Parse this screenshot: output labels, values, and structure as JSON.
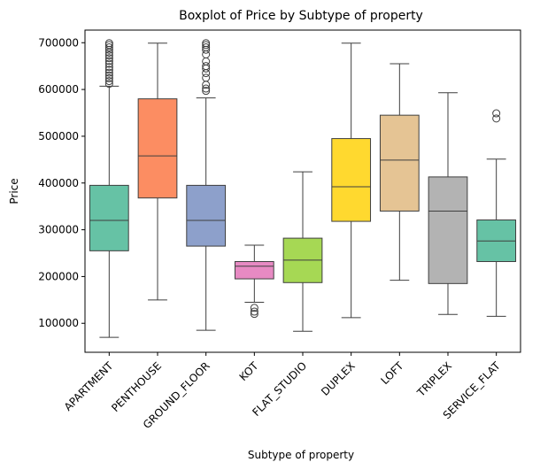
{
  "chart_data": {
    "type": "boxplot",
    "title": "Boxplot of Price by Subtype of property",
    "xlabel": "Subtype of property",
    "ylabel": "Price",
    "ylim": [
      38000,
      727000
    ],
    "yticks": [
      {
        "value": 100000,
        "label": "100000"
      },
      {
        "value": 200000,
        "label": "200000"
      },
      {
        "value": 300000,
        "label": "300000"
      },
      {
        "value": 400000,
        "label": "400000"
      },
      {
        "value": 500000,
        "label": "500000"
      },
      {
        "value": 600000,
        "label": "600000"
      },
      {
        "value": 700000,
        "label": "700000"
      }
    ],
    "grid": false,
    "legend": "none",
    "categories": [
      "APARTMENT",
      "PENTHOUSE",
      "GROUND_FLOOR",
      "KOT",
      "FLAT_STUDIO",
      "DUPLEX",
      "LOFT",
      "TRIPLEX",
      "SERVICE_FLAT"
    ],
    "boxes": [
      {
        "category": "APARTMENT",
        "whisker_low": 70000,
        "q1": 255000,
        "median": 320000,
        "q3": 395000,
        "whisker_high": 607000,
        "color": "#66c2a5",
        "outliers": [
          612000,
          618000,
          624000,
          630000,
          636000,
          642000,
          648000,
          655000,
          661000,
          667000,
          673000,
          679000,
          685000,
          690000,
          695000,
          699000
        ]
      },
      {
        "category": "PENTHOUSE",
        "whisker_low": 150000,
        "q1": 368000,
        "median": 458000,
        "q3": 580000,
        "whisker_high": 699000,
        "color": "#fc8d62",
        "outliers": []
      },
      {
        "category": "GROUND_FLOOR",
        "whisker_low": 85000,
        "q1": 265000,
        "median": 320000,
        "q3": 395000,
        "whisker_high": 582000,
        "color": "#8da0cb",
        "outliers": [
          597000,
          602000,
          610000,
          625000,
          635000,
          645000,
          650000,
          660000,
          675000,
          685000,
          690000,
          695000,
          699000
        ]
      },
      {
        "category": "KOT",
        "whisker_low": 145000,
        "q1": 195000,
        "median": 222000,
        "q3": 232000,
        "whisker_high": 267000,
        "color": "#e78ac3",
        "outliers": [
          120000,
          125000,
          133000
        ]
      },
      {
        "category": "FLAT_STUDIO",
        "whisker_low": 83000,
        "q1": 187000,
        "median": 235000,
        "q3": 282000,
        "whisker_high": 424000,
        "color": "#a6d854",
        "outliers": []
      },
      {
        "category": "DUPLEX",
        "whisker_low": 112000,
        "q1": 318000,
        "median": 392000,
        "q3": 495000,
        "whisker_high": 699000,
        "color": "#ffd92f",
        "outliers": []
      },
      {
        "category": "LOFT",
        "whisker_low": 192000,
        "q1": 340000,
        "median": 449000,
        "q3": 545000,
        "whisker_high": 655000,
        "color": "#e5c494",
        "outliers": []
      },
      {
        "category": "TRIPLEX",
        "whisker_low": 119000,
        "q1": 185000,
        "median": 340000,
        "q3": 413000,
        "whisker_high": 593000,
        "color": "#b3b3b3",
        "outliers": []
      },
      {
        "category": "SERVICE_FLAT",
        "whisker_low": 115000,
        "q1": 232000,
        "median": 276000,
        "q3": 321000,
        "whisker_high": 451000,
        "color": "#66c2a5",
        "outliers": [
          538000,
          549000
        ]
      }
    ]
  }
}
